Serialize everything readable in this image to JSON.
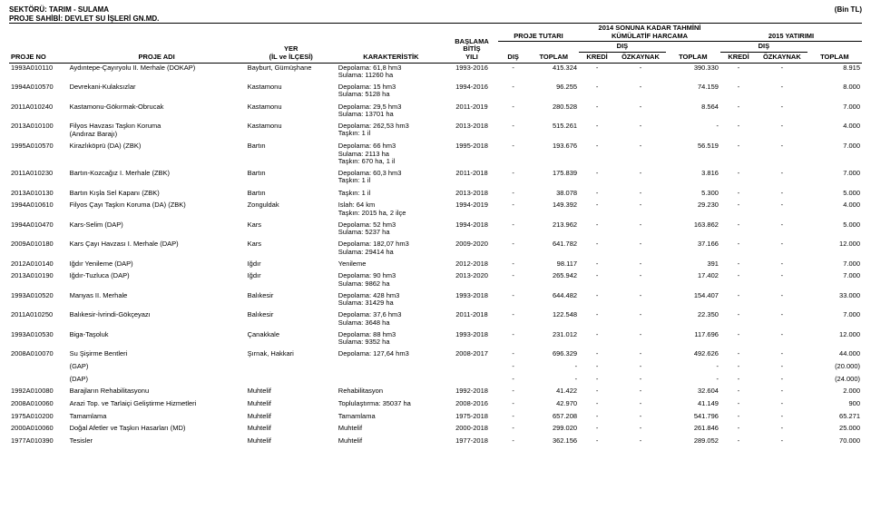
{
  "header": {
    "sektor_label": "SEKTÖRÜ:",
    "sektor_value": "TARIM - SULAMA",
    "sahip_label": "PROJE SAHİBİ:",
    "sahip_value": "DEVLET SU İŞLERİ GN.MD.",
    "unit": "(Bin TL)"
  },
  "columns": {
    "proje_no": "PROJE NO",
    "proje_adi": "PROJE ADI",
    "yer": "YER",
    "yer_sub": "(İL ve İLÇESİ)",
    "karakteristik": "KARAKTERİSTİK",
    "baslama": "BAŞLAMA",
    "bitis": "BİTİŞ",
    "yili": "YILI",
    "proje_tutar": "PROJE TUTARI",
    "dis": "DIŞ",
    "toplam": "TOPLAM",
    "kumulatif": "2014 SONUNA KADAR TAHMİNİ KÜMÜLATİF HARCAMA",
    "kredi": "KREDİ",
    "ozkaynak": "ÖZKAYNAK",
    "yatirim": "2015 YATIRIMI"
  },
  "rows": [
    {
      "no": "1993A010110",
      "adi": "Aydıntepe-Çayıryolu II. Merhale (DOKAP)",
      "yer": "Bayburt, Gümüşhane",
      "karak": "Depolama:  61,8 hm3\nSulama:  11260 ha",
      "yil": "1993-2016",
      "pt_dis": "-",
      "pt_top": "415.324",
      "k_dis": "-",
      "k_kredi": "-",
      "k_top": "390.330",
      "y_dis": "-",
      "y_kredi": "-",
      "y_top": "8.915"
    },
    {
      "no": "1994A010570",
      "adi": "Devrekani-Kulaksızlar",
      "yer": "Kastamonu",
      "karak": "Depolama:    15 hm3\nSulama:    5128 ha",
      "yil": "1994-2016",
      "pt_dis": "-",
      "pt_top": "96.255",
      "k_dis": "-",
      "k_kredi": "-",
      "k_top": "74.159",
      "y_dis": "-",
      "y_kredi": "-",
      "y_top": "8.000"
    },
    {
      "no": "2011A010240",
      "adi": "Kastamonu-Gökırmak-Obrucak",
      "yer": "Kastamonu",
      "karak": "Depolama:   29,5 hm3\nSulama:   13701 ha",
      "yil": "2011-2019",
      "pt_dis": "-",
      "pt_top": "280.528",
      "k_dis": "-",
      "k_kredi": "-",
      "k_top": "8.564",
      "y_dis": "-",
      "y_kredi": "-",
      "y_top": "7.000"
    },
    {
      "no": "2013A010100",
      "adi": "Filyos Havzası Taşkın Koruma\n(Andıraz Barajı)",
      "yer": "Kastamonu",
      "karak": "Depolama: 262,53 hm3\nTaşkın:        1 il",
      "yil": "2013-2018",
      "pt_dis": "-",
      "pt_top": "515.261",
      "k_dis": "-",
      "k_kredi": "-",
      "k_top": "-",
      "y_dis": "-",
      "y_kredi": "-",
      "y_top": "4.000"
    },
    {
      "no": "1995A010570",
      "adi": "Kirazlıköprü (DA) (ZBK)",
      "yer": "Bartın",
      "karak": "Depolama:     66 hm3\nSulama:     2113 ha\nTaşkın: 670 ha, 1 il",
      "yil": "1995-2018",
      "pt_dis": "-",
      "pt_top": "193.676",
      "k_dis": "-",
      "k_kredi": "-",
      "k_top": "56.519",
      "y_dis": "-",
      "y_kredi": "-",
      "y_top": "7.000"
    },
    {
      "no": "2011A010230",
      "adi": "Bartın-Kozcağız I. Merhale (ZBK)",
      "yer": "Bartın",
      "karak": "Depolama:  60,3 hm3\nTaşkın:        1 il",
      "yil": "2011-2018",
      "pt_dis": "-",
      "pt_top": "175.839",
      "k_dis": "-",
      "k_kredi": "-",
      "k_top": "3.816",
      "y_dis": "-",
      "y_kredi": "-",
      "y_top": "7.000"
    },
    {
      "no": "2013A010130",
      "adi": "Bartın Kışla Sel Kapanı (ZBK)",
      "yer": "Bartın",
      "karak": "Taşkın:        1 il",
      "yil": "2013-2018",
      "pt_dis": "-",
      "pt_top": "38.078",
      "k_dis": "-",
      "k_kredi": "-",
      "k_top": "5.300",
      "y_dis": "-",
      "y_kredi": "-",
      "y_top": "5.000"
    },
    {
      "no": "1994A010610",
      "adi": "Filyos Çayı Taşkın Koruma (DA) (ZBK)",
      "yer": "Zonguldak",
      "karak": "Islah:   64 km\nTaşkın: 2015 ha, 2 ilçe",
      "yil": "1994-2019",
      "pt_dis": "-",
      "pt_top": "149.392",
      "k_dis": "-",
      "k_kredi": "-",
      "k_top": "29.230",
      "y_dis": "-",
      "y_kredi": "-",
      "y_top": "4.000"
    },
    {
      "no": "1994A010470",
      "adi": "Kars-Selim (DAP)",
      "yer": "Kars",
      "karak": "Depolama:   52 hm3\nSulama:   5237 ha",
      "yil": "1994-2018",
      "pt_dis": "-",
      "pt_top": "213.962",
      "k_dis": "-",
      "k_kredi": "-",
      "k_top": "163.862",
      "y_dis": "-",
      "y_kredi": "-",
      "y_top": "5.000"
    },
    {
      "no": "2009A010180",
      "adi": "Kars Çayı Havzası I. Merhale (DAP)",
      "yer": "Kars",
      "karak": "Depolama: 182,07 hm3\nSulama:   29414 ha",
      "yil": "2009-2020",
      "pt_dis": "-",
      "pt_top": "641.782",
      "k_dis": "-",
      "k_kredi": "-",
      "k_top": "37.166",
      "y_dis": "-",
      "y_kredi": "-",
      "y_top": "12.000"
    },
    {
      "no": "2012A010140",
      "adi": "Iğdır Yenileme (DAP)",
      "yer": "Iğdır",
      "karak": "Yenileme",
      "yil": "2012-2018",
      "pt_dis": "-",
      "pt_top": "98.117",
      "k_dis": "-",
      "k_kredi": "-",
      "k_top": "391",
      "y_dis": "-",
      "y_kredi": "-",
      "y_top": "7.000"
    },
    {
      "no": "2013A010190",
      "adi": "Iğdır-Tuzluca (DAP)",
      "yer": "Iğdır",
      "karak": "Depolama: 90 hm3\nSulama:  9862 ha",
      "yil": "2013-2020",
      "pt_dis": "-",
      "pt_top": "265.942",
      "k_dis": "-",
      "k_kredi": "-",
      "k_top": "17.402",
      "y_dis": "-",
      "y_kredi": "-",
      "y_top": "7.000"
    },
    {
      "no": "1993A010520",
      "adi": "Manyas II. Merhale",
      "yer": "Balıkesir",
      "karak": "Depolama:  428 hm3\nSulama:   31429 ha",
      "yil": "1993-2018",
      "pt_dis": "-",
      "pt_top": "644.482",
      "k_dis": "-",
      "k_kredi": "-",
      "k_top": "154.407",
      "y_dis": "-",
      "y_kredi": "-",
      "y_top": "33.000"
    },
    {
      "no": "2011A010250",
      "adi": "Balıkesir-İvrindi-Gökçeyazı",
      "yer": "Balıkesir",
      "karak": "Depolama: 37,6 hm3\nSulama:   3648 ha",
      "yil": "2011-2018",
      "pt_dis": "-",
      "pt_top": "122.548",
      "k_dis": "-",
      "k_kredi": "-",
      "k_top": "22.350",
      "y_dis": "-",
      "y_kredi": "-",
      "y_top": "7.000"
    },
    {
      "no": "1993A010530",
      "adi": "Biga-Taşoluk",
      "yer": "Çanakkale",
      "karak": "Depolama:   88 hm3\nSulama:   9352 ha",
      "yil": "1993-2018",
      "pt_dis": "-",
      "pt_top": "231.012",
      "k_dis": "-",
      "k_kredi": "-",
      "k_top": "117.696",
      "y_dis": "-",
      "y_kredi": "-",
      "y_top": "12.000"
    },
    {
      "no": "2008A010070",
      "adi": "Su Şişirme Bentleri",
      "yer": "Şırnak, Hakkari",
      "karak": "Depolama:  127,64 hm3",
      "yil": "2008-2017",
      "pt_dis": "-",
      "pt_top": "696.329",
      "k_dis": "-",
      "k_kredi": "-",
      "k_top": "492.626",
      "y_dis": "-",
      "y_kredi": "-",
      "y_top": "44.000"
    },
    {
      "no": "",
      "adi": "(GAP)",
      "yer": "",
      "karak": "",
      "yil": "",
      "pt_dis": "-",
      "pt_top": "-",
      "k_dis": "-",
      "k_kredi": "-",
      "k_top": "-",
      "y_dis": "-",
      "y_kredi": "-",
      "y_top": "(20.000)"
    },
    {
      "no": "",
      "adi": "(DAP)",
      "yer": "",
      "karak": "",
      "yil": "",
      "pt_dis": "-",
      "pt_top": "-",
      "k_dis": "-",
      "k_kredi": "-",
      "k_top": "-",
      "y_dis": "-",
      "y_kredi": "-",
      "y_top": "(24.000)"
    },
    {
      "no": "1992A010080",
      "adi": "Barajların Rehabilitasyonu",
      "yer": "Muhtelif",
      "karak": "Rehabilitasyon",
      "yil": "1992-2018",
      "pt_dis": "-",
      "pt_top": "41.422",
      "k_dis": "-",
      "k_kredi": "-",
      "k_top": "32.604",
      "y_dis": "-",
      "y_kredi": "-",
      "y_top": "2.000"
    },
    {
      "no": "2008A010060",
      "adi": "Arazi Top. ve Tarlaiçi Geliştirme Hizmetleri",
      "yer": "Muhtelif",
      "karak": "Toplulaştırma: 35037 ha",
      "yil": "2008-2016",
      "pt_dis": "-",
      "pt_top": "42.970",
      "k_dis": "-",
      "k_kredi": "-",
      "k_top": "41.149",
      "y_dis": "-",
      "y_kredi": "-",
      "y_top": "900"
    },
    {
      "no": "1975A010200",
      "adi": "Tamamlama",
      "yer": "Muhtelif",
      "karak": "Tamamlama",
      "yil": "1975-2018",
      "pt_dis": "-",
      "pt_top": "657.208",
      "k_dis": "-",
      "k_kredi": "-",
      "k_top": "541.796",
      "y_dis": "-",
      "y_kredi": "-",
      "y_top": "65.271"
    },
    {
      "no": "2000A010060",
      "adi": "Doğal Afetler ve Taşkın Hasarları (MD)",
      "yer": "Muhtelif",
      "karak": "Muhtelif",
      "yil": "2000-2018",
      "pt_dis": "-",
      "pt_top": "299.020",
      "k_dis": "-",
      "k_kredi": "-",
      "k_top": "261.846",
      "y_dis": "-",
      "y_kredi": "-",
      "y_top": "25.000"
    },
    {
      "no": "1977A010390",
      "adi": "Tesisler",
      "yer": "Muhtelif",
      "karak": "Muhtelif",
      "yil": "1977-2018",
      "pt_dis": "-",
      "pt_top": "362.156",
      "k_dis": "-",
      "k_kredi": "-",
      "k_top": "289.052",
      "y_dis": "-",
      "y_kredi": "-",
      "y_top": "70.000"
    }
  ]
}
